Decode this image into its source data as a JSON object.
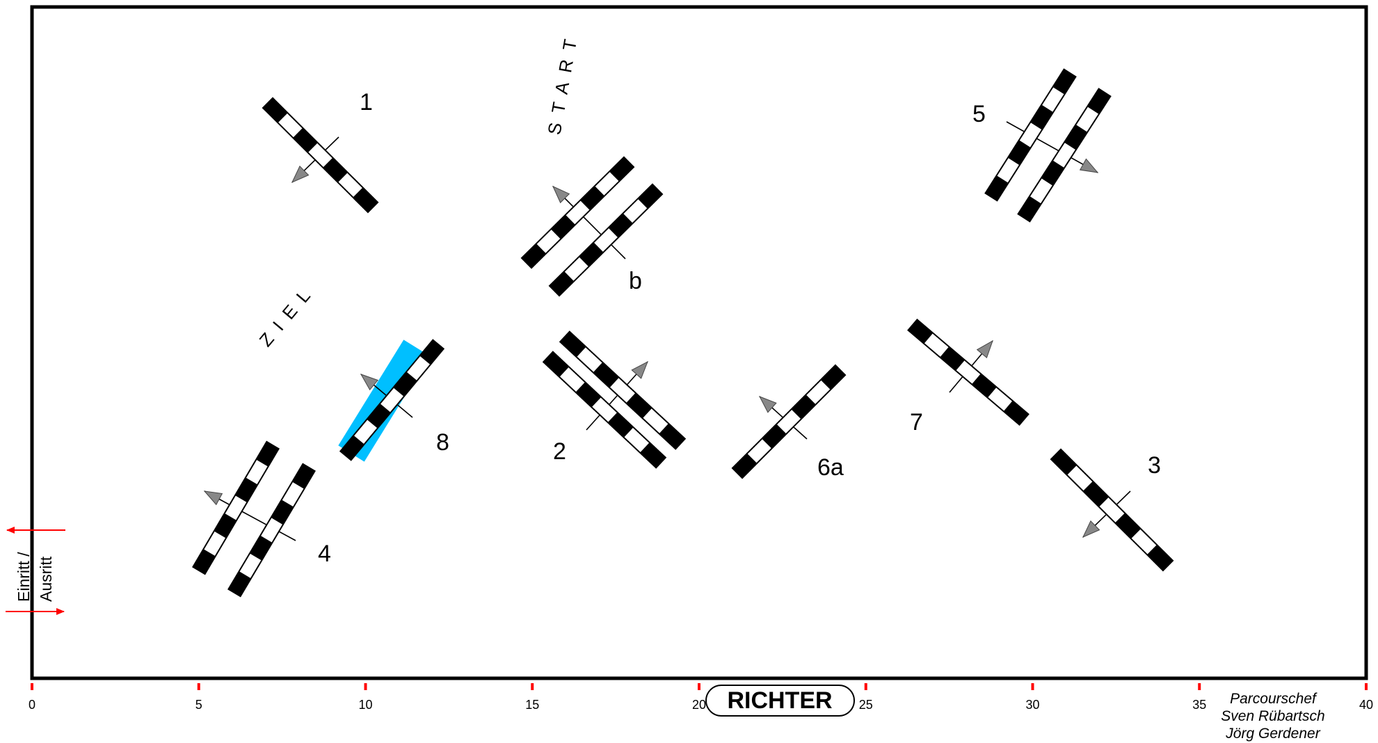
{
  "labels": {
    "start": "START",
    "ziel": "ZIEL",
    "richter": "RICHTER",
    "gate_line1": "Einritt /",
    "gate_line2": "Ausritt",
    "credit_title": "Parcourschef",
    "credit_name1": "Sven Rübartsch",
    "credit_name2": "Jörg Gerdener"
  },
  "obstacle_numbers": {
    "n1": "1",
    "nb": "b",
    "n5": "5",
    "n8": "8",
    "n2": "2",
    "n6a": "6a",
    "n7": "7",
    "n3": "3",
    "n4": "4"
  },
  "scale_ticks": [
    "0",
    "5",
    "10",
    "15",
    "20",
    "25",
    "30",
    "35",
    "40"
  ],
  "colors": {
    "arena_border": "#000000",
    "pole_dark": "#000000",
    "pole_light": "#ffffff",
    "arrow": "#888888",
    "highlight": "#00bfff",
    "gate_arrow": "#ff0000",
    "tick": "#ff0000"
  }
}
